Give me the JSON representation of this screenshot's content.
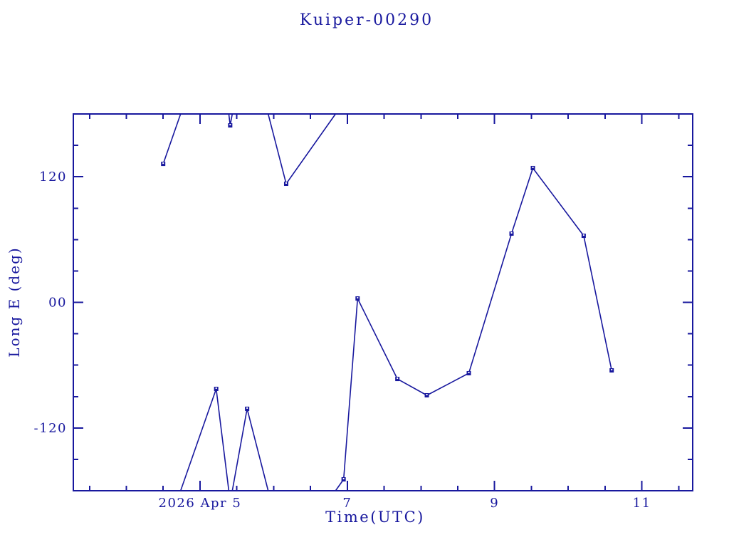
{
  "colors": {
    "ink": "#18189e",
    "background": "#ffffff"
  },
  "chart_data": {
    "type": "line",
    "title": "Kuiper-00290",
    "xlabel": "Time(UTC)",
    "ylabel": "Long E (deg)",
    "xlim": [
      3.28,
      11.69
    ],
    "ylim": [
      -180,
      180
    ],
    "wrap_at": 180,
    "grid": false,
    "legend": null,
    "marker": "square",
    "x": [
      4.5,
      5.22,
      5.41,
      5.64,
      6.17,
      6.95,
      7.14,
      7.68,
      8.08,
      8.65,
      9.23,
      9.52,
      10.21,
      10.59
    ],
    "y": [
      132.3,
      -82.7,
      169.1,
      -101.7,
      113.3,
      -169.1,
      3.7,
      -73.2,
      -88.8,
      -67.7,
      65.7,
      128.3,
      63.6,
      -65.0
    ],
    "x_major_ticks": [
      {
        "value": 5,
        "label": "2026 Apr 5"
      },
      {
        "value": 7,
        "label": "7"
      },
      {
        "value": 9,
        "label": "9"
      },
      {
        "value": 11,
        "label": "11"
      }
    ],
    "x_minor_step": 0.5,
    "y_major_ticks": [
      {
        "value": 120,
        "label": "120"
      },
      {
        "value": 0,
        "label": "00"
      },
      {
        "value": -120,
        "label": "-120"
      }
    ],
    "y_minor_step": 30
  }
}
